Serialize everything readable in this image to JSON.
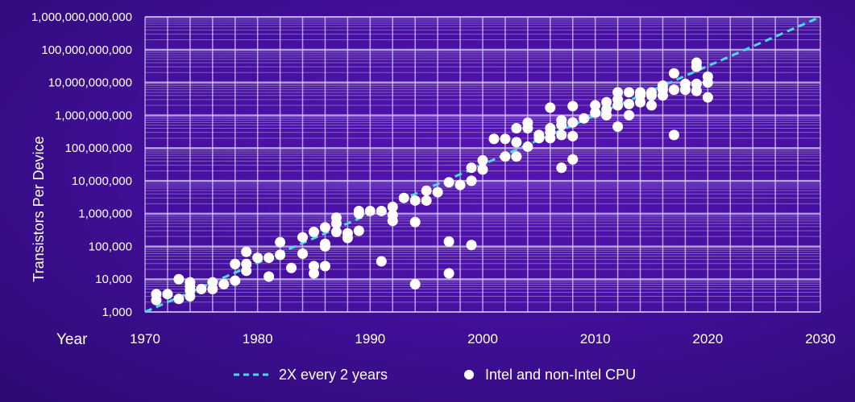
{
  "chart_data": {
    "type": "scatter",
    "title": "",
    "xlabel": "Year",
    "ylabel": "Transistors Per Device",
    "xlim": [
      1970,
      2030
    ],
    "ylim": [
      1000,
      1000000000000
    ],
    "yscale": "log",
    "grid": true,
    "x_ticks": [
      "1970",
      "1980",
      "1990",
      "2000",
      "2010",
      "2020",
      "2030"
    ],
    "y_ticks": [
      "1,000",
      "10,000",
      "100,000",
      "1,000,000",
      "10,000,000",
      "100,000,000",
      "1,000,000,000",
      "10,000,000,000",
      "100,000,000,000",
      "1,000,000,000,000"
    ],
    "legend": {
      "placement": "bottom",
      "entries": [
        "2X every 2 years",
        "Intel and non-Intel CPU"
      ]
    },
    "trend": {
      "name": "2X every 2 years",
      "start": [
        1970,
        1000
      ],
      "end": [
        2030,
        1000000000000
      ],
      "color": "#4dd8e8"
    },
    "series": [
      {
        "name": "Intel and non-Intel CPU",
        "color": "#ffffff",
        "points": [
          [
            1971,
            2300
          ],
          [
            1971,
            3500
          ],
          [
            1972,
            3500
          ],
          [
            1973,
            2500
          ],
          [
            1973,
            10000
          ],
          [
            1974,
            3000
          ],
          [
            1974,
            4500
          ],
          [
            1974,
            6000
          ],
          [
            1974,
            8000
          ],
          [
            1975,
            5000
          ],
          [
            1976,
            5000
          ],
          [
            1976,
            8000
          ],
          [
            1977,
            7000
          ],
          [
            1978,
            9000
          ],
          [
            1978,
            29000
          ],
          [
            1979,
            18000
          ],
          [
            1979,
            29000
          ],
          [
            1979,
            68000
          ],
          [
            1980,
            45000
          ],
          [
            1981,
            12000
          ],
          [
            1981,
            45000
          ],
          [
            1982,
            55000
          ],
          [
            1982,
            134000
          ],
          [
            1983,
            22000
          ],
          [
            1984,
            60000
          ],
          [
            1984,
            190000
          ],
          [
            1985,
            15000
          ],
          [
            1985,
            25000
          ],
          [
            1985,
            275000
          ],
          [
            1986,
            25000
          ],
          [
            1986,
            100000
          ],
          [
            1986,
            120000
          ],
          [
            1986,
            380000
          ],
          [
            1987,
            275000
          ],
          [
            1987,
            500000
          ],
          [
            1987,
            750000
          ],
          [
            1988,
            180000
          ],
          [
            1988,
            250000
          ],
          [
            1989,
            300000
          ],
          [
            1989,
            1000000
          ],
          [
            1989,
            1200000
          ],
          [
            1990,
            1200000
          ],
          [
            1991,
            35000
          ],
          [
            1991,
            1200000
          ],
          [
            1992,
            600000
          ],
          [
            1992,
            900000
          ],
          [
            1992,
            1600000
          ],
          [
            1993,
            3000000
          ],
          [
            1994,
            7000
          ],
          [
            1994,
            550000
          ],
          [
            1994,
            2500000
          ],
          [
            1995,
            2500000
          ],
          [
            1995,
            5000000
          ],
          [
            1996,
            4500000
          ],
          [
            1997,
            15000
          ],
          [
            1997,
            140000
          ],
          [
            1997,
            9000000
          ],
          [
            1998,
            7500000
          ],
          [
            1999,
            110000
          ],
          [
            1999,
            10000000
          ],
          [
            1999,
            25000000
          ],
          [
            2000,
            22000000
          ],
          [
            2000,
            42000000
          ],
          [
            2001,
            190000000
          ],
          [
            2002,
            55000000
          ],
          [
            2002,
            190000000
          ],
          [
            2003,
            55000000
          ],
          [
            2003,
            150000000
          ],
          [
            2003,
            400000000
          ],
          [
            2004,
            110000000
          ],
          [
            2004,
            400000000
          ],
          [
            2004,
            590000000
          ],
          [
            2005,
            200000000
          ],
          [
            2005,
            250000000
          ],
          [
            2006,
            200000000
          ],
          [
            2006,
            300000000
          ],
          [
            2006,
            400000000
          ],
          [
            2006,
            1700000000
          ],
          [
            2007,
            25000000
          ],
          [
            2007,
            250000000
          ],
          [
            2007,
            500000000
          ],
          [
            2007,
            700000000
          ],
          [
            2008,
            45000000
          ],
          [
            2008,
            230000000
          ],
          [
            2008,
            600000000
          ],
          [
            2008,
            1900000000
          ],
          [
            2009,
            800000000
          ],
          [
            2010,
            1200000000
          ],
          [
            2010,
            2000000000
          ],
          [
            2011,
            1000000000
          ],
          [
            2011,
            1500000000
          ],
          [
            2011,
            2500000000
          ],
          [
            2012,
            450000000
          ],
          [
            2012,
            2000000000
          ],
          [
            2012,
            3000000000
          ],
          [
            2012,
            5000000000
          ],
          [
            2013,
            1000000000
          ],
          [
            2013,
            2200000000
          ],
          [
            2013,
            5000000000
          ],
          [
            2014,
            2500000000
          ],
          [
            2014,
            4000000000
          ],
          [
            2014,
            5000000000
          ],
          [
            2015,
            2000000000
          ],
          [
            2015,
            4000000000
          ],
          [
            2015,
            5000000000
          ],
          [
            2016,
            4000000000
          ],
          [
            2016,
            6000000000
          ],
          [
            2016,
            8000000000
          ],
          [
            2017,
            250000000
          ],
          [
            2017,
            6000000000
          ],
          [
            2017,
            19000000000
          ],
          [
            2018,
            6000000000
          ],
          [
            2018,
            9000000000
          ],
          [
            2019,
            5500000000
          ],
          [
            2019,
            9000000000
          ],
          [
            2019,
            30000000000
          ],
          [
            2019,
            40000000000
          ],
          [
            2020,
            3500000000
          ],
          [
            2020,
            10000000000
          ],
          [
            2020,
            15000000000
          ]
        ]
      }
    ]
  }
}
